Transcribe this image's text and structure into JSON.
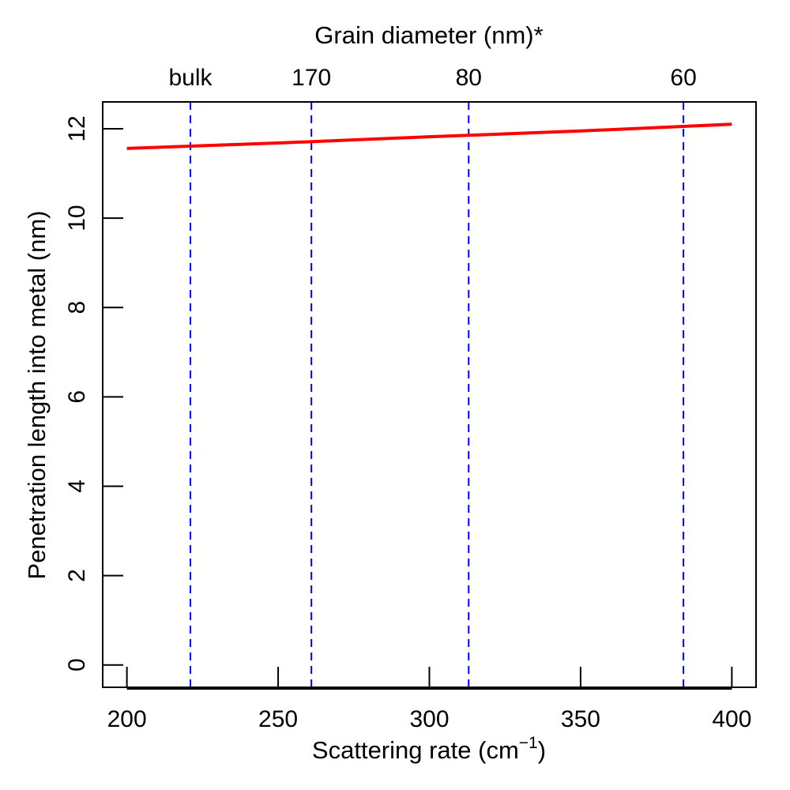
{
  "chart_data": {
    "type": "line",
    "xlabel": "Scattering rate (cm",
    "xlabel_exponent": "−1",
    "xlabel_close": ")",
    "ylabel": "Penetration length into metal (nm)",
    "top_axis_title": "Grain diameter (nm)*",
    "xlim": [
      192,
      408
    ],
    "ylim": [
      -0.5,
      12.6
    ],
    "x_ticks": [
      200,
      250,
      300,
      350,
      400
    ],
    "y_ticks": [
      0,
      2,
      4,
      6,
      8,
      10,
      12
    ],
    "grid": false,
    "series": [
      {
        "color": "#ff0000",
        "x": [
          200,
          250,
          300,
          350,
          400
        ],
        "y": [
          11.56,
          11.68,
          11.82,
          11.95,
          12.1
        ]
      }
    ],
    "reference_lines": [
      {
        "x": 221,
        "label": "bulk"
      },
      {
        "x": 261,
        "label": "170"
      },
      {
        "x": 313,
        "label": "80"
      },
      {
        "x": 384,
        "label": "60"
      }
    ],
    "reference_box_top_y": 12.6,
    "reference_color": "#0000ff"
  }
}
